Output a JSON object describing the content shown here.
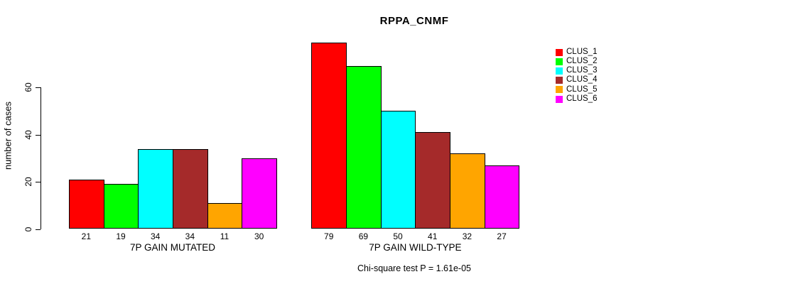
{
  "page": {
    "background": "#ffffff"
  },
  "chart_data": {
    "type": "bar",
    "title": "RPPA_CNMF",
    "ylabel": "number of cases",
    "xlabel": "",
    "yticks": [
      0,
      20,
      40,
      60
    ],
    "ylim": [
      0,
      79
    ],
    "grid": false,
    "legend_position": "right",
    "bar_border_color": "#000000",
    "series": [
      {
        "name": "CLUS_1",
        "color": "#FF0000"
      },
      {
        "name": "CLUS_2",
        "color": "#00FF00"
      },
      {
        "name": "CLUS_3",
        "color": "#00FFFF"
      },
      {
        "name": "CLUS_4",
        "color": "#A52A2A"
      },
      {
        "name": "CLUS_5",
        "color": "#FFA500"
      },
      {
        "name": "CLUS_6",
        "color": "#FF00FF"
      }
    ],
    "groups": [
      {
        "label": "7P GAIN MUTATED",
        "values": [
          21,
          19,
          34,
          34,
          11,
          30
        ]
      },
      {
        "label": "7P GAIN WILD-TYPE",
        "values": [
          79,
          69,
          50,
          41,
          32,
          27
        ]
      }
    ],
    "annotation": "Chi-square test P = 1.61e-05"
  }
}
